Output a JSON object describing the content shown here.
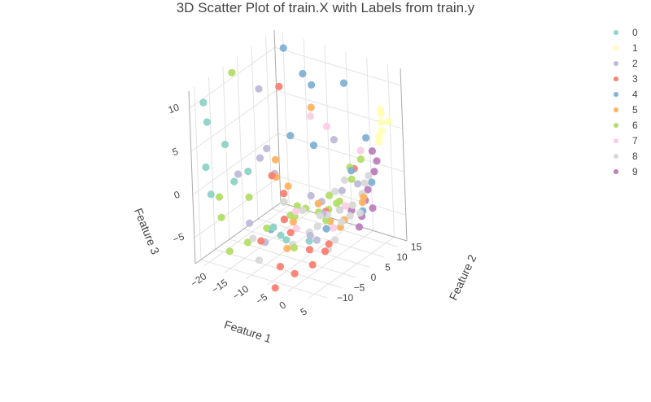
{
  "chart_data": {
    "type": "scatter3d",
    "title": "3D Scatter Plot of train.X with Labels from train.y",
    "axes": {
      "x": {
        "label": "Feature 1",
        "range": [
          -22,
          8
        ],
        "ticks": [
          "−20",
          "−15",
          "−10",
          "−5",
          "0",
          "5"
        ]
      },
      "y": {
        "label": "Feature 2",
        "range": [
          -12,
          18
        ],
        "ticks": [
          "−10",
          "−5",
          "0",
          "5",
          "10",
          "15"
        ]
      },
      "z": {
        "label": "Feature 3",
        "range": [
          -8,
          12
        ],
        "ticks": [
          "−5",
          "0",
          "5",
          "10"
        ]
      }
    },
    "grid": true,
    "legend": {
      "placement": "top-right"
    },
    "series": [
      {
        "name": "0",
        "color": "#8dd3c7",
        "points": [
          [
            -20,
            -10,
            10.5
          ],
          [
            -20,
            -9,
            8
          ],
          [
            -20,
            -10,
            3
          ],
          [
            -18,
            -6,
            5
          ],
          [
            -19,
            -10,
            0
          ],
          [
            -12,
            -7,
            3
          ],
          [
            -14,
            -9,
            2
          ],
          [
            -5,
            -9,
            -2
          ],
          [
            -4,
            -8,
            -3
          ],
          [
            -3,
            -8,
            -1
          ],
          [
            -2,
            -9,
            -3
          ],
          [
            -5,
            -9,
            -2
          ],
          [
            0,
            -4,
            -4
          ]
        ]
      },
      {
        "name": "1",
        "color": "#ffffb3",
        "points": [
          [
            5,
            15,
            7
          ],
          [
            5,
            15,
            6
          ],
          [
            5,
            15,
            5
          ],
          [
            5,
            14,
            4
          ],
          [
            5,
            14,
            4.5
          ],
          [
            6,
            16,
            6
          ],
          [
            5,
            15,
            7.5
          ]
        ]
      },
      {
        "name": "2",
        "color": "#bebada",
        "points": [
          [
            -9,
            -7,
            5
          ],
          [
            -8,
            -6,
            6
          ],
          [
            -13,
            -9,
            3
          ],
          [
            -15,
            2,
            10
          ],
          [
            -10,
            -10,
            -2
          ],
          [
            -3,
            10,
            4
          ],
          [
            -3,
            5,
            -2
          ],
          [
            -2,
            0,
            0
          ],
          [
            -1,
            1,
            -1
          ],
          [
            0,
            1,
            -2
          ],
          [
            2,
            5,
            0
          ],
          [
            -5,
            -12,
            -3
          ],
          [
            3,
            9,
            0
          ],
          [
            1,
            -5,
            -3
          ],
          [
            -7,
            -5,
            3
          ],
          [
            -1,
            0,
            -5
          ]
        ]
      },
      {
        "name": "3",
        "color": "#fb8072",
        "points": [
          [
            -8,
            -1,
            12
          ],
          [
            -7,
            -6,
            3
          ],
          [
            -5,
            -5,
            1
          ],
          [
            -3,
            -8,
            -1
          ],
          [
            -6,
            -12,
            -3
          ],
          [
            -3,
            -10,
            -6
          ],
          [
            -3,
            -12,
            -8
          ],
          [
            -1,
            -8,
            -7
          ],
          [
            2,
            -6,
            -6
          ],
          [
            4,
            -3,
            -4
          ],
          [
            0,
            -4,
            -5
          ],
          [
            3,
            8,
            2
          ],
          [
            0,
            2,
            -2
          ],
          [
            3,
            -3,
            -5
          ],
          [
            -3,
            -6,
            -3
          ]
        ]
      },
      {
        "name": "4",
        "color": "#80b1d3",
        "points": [
          [
            -8,
            1,
            16
          ],
          [
            -5,
            3,
            13
          ],
          [
            2,
            7,
            12
          ],
          [
            -3,
            3,
            12
          ],
          [
            -5,
            -2,
            7
          ],
          [
            -7,
            -7,
            -3
          ],
          [
            -3,
            3,
            5
          ],
          [
            0,
            2,
            -4
          ],
          [
            3,
            7,
            2
          ],
          [
            4,
            9,
            -3
          ],
          [
            5,
            11,
            0
          ],
          [
            2,
            4,
            -2
          ],
          [
            4,
            11,
            5
          ]
        ]
      },
      {
        "name": "5",
        "color": "#fdb462",
        "points": [
          [
            -4,
            4,
            9
          ],
          [
            -6,
            -6,
            5
          ],
          [
            -6,
            -6,
            3
          ],
          [
            -6,
            -2,
            1
          ],
          [
            -1,
            1,
            -1
          ],
          [
            3,
            4,
            -3
          ],
          [
            5,
            8,
            -1
          ],
          [
            4,
            9,
            -2
          ],
          [
            -3,
            -5,
            -2
          ],
          [
            2,
            4,
            -4
          ],
          [
            -4,
            -6,
            -5
          ],
          [
            1,
            2,
            -3
          ]
        ]
      },
      {
        "name": "6",
        "color": "#b3de69",
        "points": [
          [
            -15,
            -7,
            14
          ],
          [
            -17,
            -10,
            0
          ],
          [
            -16,
            -11,
            -2
          ],
          [
            -15,
            -10,
            -6
          ],
          [
            -12,
            -8,
            -5
          ],
          [
            -12,
            -7,
            0
          ],
          [
            -5,
            -5,
            0
          ],
          [
            -4,
            -2,
            -1
          ],
          [
            -4,
            -3,
            -2
          ],
          [
            -1,
            1,
            -2
          ],
          [
            2,
            3,
            -1
          ],
          [
            0,
            3,
            -2
          ],
          [
            3,
            7,
            1
          ],
          [
            3,
            7,
            -2
          ],
          [
            -8,
            -7,
            -3
          ],
          [
            -2,
            -2,
            -1
          ],
          [
            2,
            4,
            -1
          ],
          [
            -3,
            -5,
            -5
          ],
          [
            1,
            2,
            0
          ],
          [
            2,
            8,
            2
          ],
          [
            4,
            9,
            3
          ],
          [
            0,
            2,
            -3
          ],
          [
            -5,
            -3,
            -2
          ]
        ]
      },
      {
        "name": "7",
        "color": "#fccde5",
        "points": [
          [
            0,
            -2,
            10
          ],
          [
            1,
            2,
            8
          ],
          [
            4,
            9,
            4
          ],
          [
            -3,
            -4,
            -1
          ],
          [
            2,
            6,
            -2
          ],
          [
            1,
            3,
            -4
          ],
          [
            -3,
            -4,
            -3
          ]
        ]
      },
      {
        "name": "8",
        "color": "#d9d9d9",
        "points": [
          [
            -8,
            -10,
            -6
          ],
          [
            -10,
            -9,
            -4
          ],
          [
            -5,
            -5,
            0
          ],
          [
            -2,
            -3,
            -1
          ],
          [
            0,
            0,
            -2
          ],
          [
            1,
            1,
            -2
          ],
          [
            2,
            4,
            -2
          ],
          [
            3,
            7,
            -2
          ],
          [
            4,
            9,
            -1
          ],
          [
            4,
            10,
            0
          ],
          [
            5,
            10,
            1
          ],
          [
            3,
            6,
            -3
          ],
          [
            2,
            2,
            -5
          ],
          [
            1,
            1,
            -6
          ],
          [
            -4,
            -4,
            -5
          ],
          [
            0,
            -1,
            -3
          ],
          [
            3,
            3,
            -3
          ],
          [
            -2,
            -1,
            -4
          ],
          [
            1,
            4,
            0
          ],
          [
            4,
            8,
            -3
          ],
          [
            2,
            6,
            1
          ],
          [
            5,
            12,
            1
          ]
        ]
      },
      {
        "name": "9",
        "color": "#bc80bd",
        "points": [
          [
            4,
            13,
            3
          ],
          [
            5,
            12,
            1
          ],
          [
            4,
            11,
            -1
          ],
          [
            5,
            11,
            -3
          ],
          [
            3,
            10,
            -4
          ],
          [
            4,
            10,
            -2
          ],
          [
            5,
            13,
            2
          ],
          [
            3,
            9,
            -5
          ],
          [
            2,
            8,
            -3
          ]
        ]
      }
    ]
  }
}
